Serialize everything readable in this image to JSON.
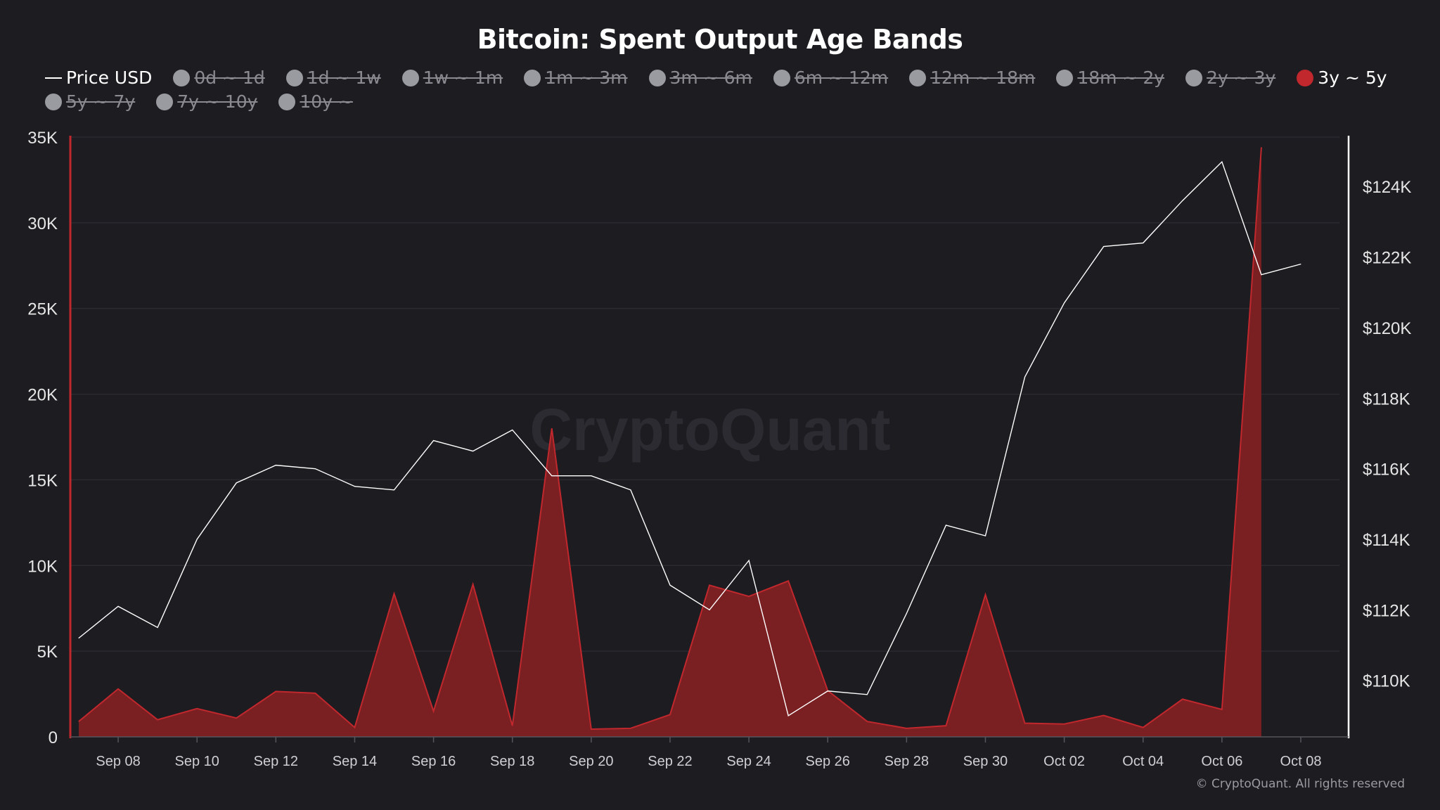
{
  "title": "Bitcoin: Spent Output Age Bands",
  "footer": "© CryptoQuant. All rights reserved",
  "watermark": "CryptoQuant",
  "legend": [
    {
      "label": "Price USD",
      "kind": "line",
      "active": true
    },
    {
      "label": "0d ~ 1d",
      "kind": "dot",
      "active": false
    },
    {
      "label": "1d ~ 1w",
      "kind": "dot",
      "active": false
    },
    {
      "label": "1w ~ 1m",
      "kind": "dot",
      "active": false
    },
    {
      "label": "1m ~ 3m",
      "kind": "dot",
      "active": false
    },
    {
      "label": "3m ~ 6m",
      "kind": "dot",
      "active": false
    },
    {
      "label": "6m ~ 12m",
      "kind": "dot",
      "active": false
    },
    {
      "label": "12m ~ 18m",
      "kind": "dot",
      "active": false
    },
    {
      "label": "18m ~ 2y",
      "kind": "dot",
      "active": false
    },
    {
      "label": "2y ~ 3y",
      "kind": "dot",
      "active": false
    },
    {
      "label": "3y ~ 5y",
      "kind": "dot",
      "active": true,
      "color": "#c0282d"
    },
    {
      "label": "5y ~ 7y",
      "kind": "dot",
      "active": false
    },
    {
      "label": "7y ~ 10y",
      "kind": "dot",
      "active": false
    },
    {
      "label": "10y ~",
      "kind": "dot",
      "active": false
    }
  ],
  "colors": {
    "background": "#1c1c21",
    "area_fill": "#7a1f22",
    "area_stroke": "#c0282d",
    "price_line": "#ffffff",
    "left_axis": "#c0282d",
    "right_axis": "#ffffff",
    "grid": "#2a2a30"
  },
  "chart_data": {
    "type": "area",
    "x": [
      "Sep 07",
      "Sep 08",
      "Sep 09",
      "Sep 10",
      "Sep 11",
      "Sep 12",
      "Sep 13",
      "Sep 14",
      "Sep 15",
      "Sep 16",
      "Sep 17",
      "Sep 18",
      "Sep 19",
      "Sep 20",
      "Sep 21",
      "Sep 22",
      "Sep 23",
      "Sep 24",
      "Sep 25",
      "Sep 26",
      "Sep 27",
      "Sep 28",
      "Sep 29",
      "Sep 30",
      "Oct 01",
      "Oct 02",
      "Oct 03",
      "Oct 04",
      "Oct 05",
      "Oct 06",
      "Oct 07",
      "Oct 08"
    ],
    "x_tick_labels": [
      "Sep 08",
      "Sep 10",
      "Sep 12",
      "Sep 14",
      "Sep 16",
      "Sep 18",
      "Sep 20",
      "Sep 22",
      "Sep 24",
      "Sep 26",
      "Sep 28",
      "Sep 30",
      "Oct 02",
      "Oct 04",
      "Oct 06",
      "Oct 08"
    ],
    "series": [
      {
        "name": "3y ~ 5y",
        "axis": "left",
        "values": [
          900,
          2800,
          1000,
          1650,
          1100,
          2650,
          2550,
          550,
          8350,
          1500,
          8900,
          650,
          18000,
          450,
          500,
          1300,
          8850,
          8200,
          9100,
          2700,
          900,
          500,
          650,
          8300,
          800,
          750,
          1250,
          550,
          2200,
          1600,
          34400,
          null
        ]
      },
      {
        "name": "Price USD",
        "axis": "right",
        "values": [
          111200,
          112100,
          111500,
          114000,
          115600,
          116100,
          116000,
          115500,
          115400,
          116800,
          116500,
          117100,
          115800,
          115800,
          115400,
          112700,
          112000,
          113400,
          109000,
          109700,
          109600,
          111900,
          114400,
          114100,
          118600,
          120700,
          122300,
          122400,
          123600,
          124700,
          121500,
          121800
        ]
      }
    ],
    "left_axis": {
      "ylim": [
        0,
        35000
      ],
      "ticks": [
        "0",
        "5K",
        "10K",
        "15K",
        "20K",
        "25K",
        "30K",
        "35K"
      ]
    },
    "right_axis": {
      "ylim": [
        108400,
        125400
      ],
      "ticks": [
        "$110K",
        "$112K",
        "$114K",
        "$116K",
        "$118K",
        "$120K",
        "$122K",
        "$124K"
      ],
      "tick_values": [
        110000,
        112000,
        114000,
        116000,
        118000,
        120000,
        122000,
        124000
      ]
    }
  }
}
